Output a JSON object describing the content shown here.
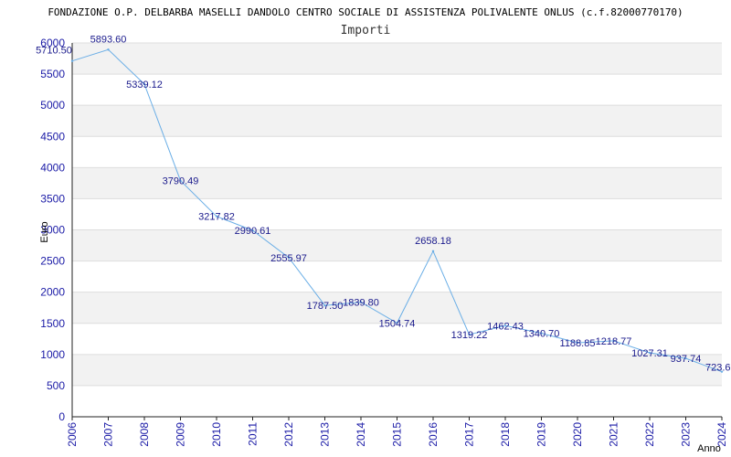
{
  "chart_data": {
    "type": "line",
    "title": "FONDAZIONE O.P. DELBARBA MASELLI DANDOLO CENTRO SOCIALE DI ASSISTENZA POLIVALENTE ONLUS (c.f.82000770170)",
    "subtitle": "Importi",
    "xlabel": "Anno",
    "ylabel": "Euro",
    "x": [
      "2006",
      "2007",
      "2008",
      "2009",
      "2010",
      "2011",
      "2012",
      "2013",
      "2014",
      "2015",
      "2016",
      "2017",
      "2018",
      "2019",
      "2020",
      "2021",
      "2022",
      "2023",
      "2024"
    ],
    "values": [
      5710.5,
      5893.6,
      5339.12,
      3790.49,
      3217.82,
      2990.61,
      2555.97,
      1787.5,
      1839.8,
      1504.74,
      2658.18,
      1319.22,
      1462.43,
      1340.7,
      1188.85,
      1218.77,
      1027.31,
      937.74,
      723.6
    ],
    "data_labels": [
      "5710.50",
      "5893.60",
      "5339.12",
      "3790.49",
      "3217.82",
      "2990.61",
      "2555.97",
      "1787.50",
      "1839.80",
      "1504.74",
      "2658.18",
      "1319.22",
      "1462.43",
      "1340.70",
      "1188.85",
      "1218.77",
      "1027.31",
      "937.74",
      "723.6"
    ],
    "yticks": [
      "0",
      "500",
      "1000",
      "1500",
      "2000",
      "2500",
      "3000",
      "3500",
      "4000",
      "4500",
      "5000",
      "5500",
      "6000"
    ],
    "ylim": [
      0,
      6000
    ],
    "grid": true,
    "colors": {
      "line": "#6aaee6",
      "band": "#f2f2f2",
      "tick_text": "#1a1aa6",
      "label_text": "#1a1a8c"
    }
  }
}
